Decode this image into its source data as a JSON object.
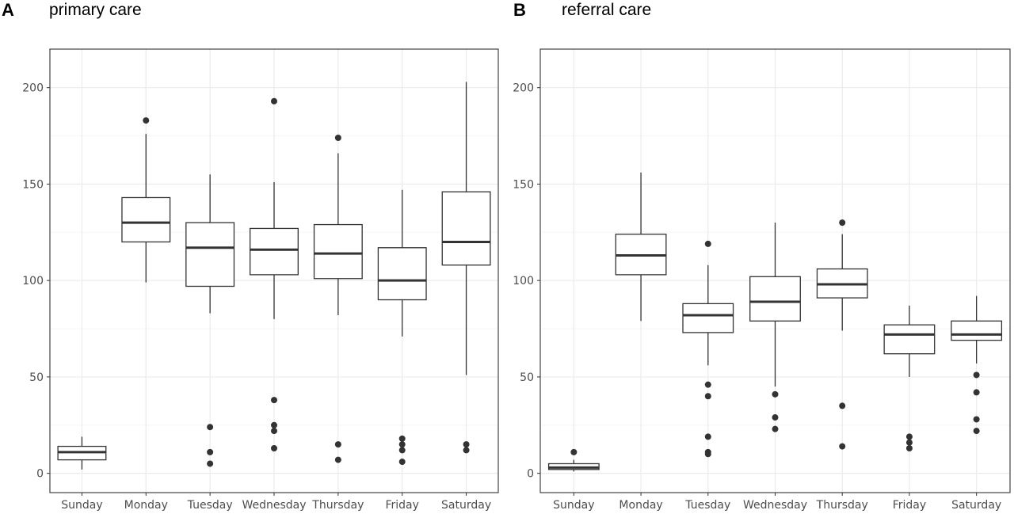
{
  "chart_data": [
    {
      "type": "box",
      "panel_label": "A",
      "title": "primary care",
      "xlabel": "",
      "ylabel": "",
      "ylim": [
        -10,
        220
      ],
      "yticks": [
        0,
        50,
        100,
        150,
        200
      ],
      "grid": true,
      "categories": [
        "Sunday",
        "Monday",
        "Tuesday",
        "Wednesday",
        "Thursday",
        "Friday",
        "Saturday"
      ],
      "boxes": [
        {
          "category": "Sunday",
          "whisker_low": 2,
          "q1": 7,
          "median": 11,
          "q3": 14,
          "whisker_high": 19,
          "outliers": []
        },
        {
          "category": "Monday",
          "whisker_low": 99,
          "q1": 120,
          "median": 130,
          "q3": 143,
          "whisker_high": 176,
          "outliers": [
            183
          ]
        },
        {
          "category": "Tuesday",
          "whisker_low": 83,
          "q1": 97,
          "median": 117,
          "q3": 130,
          "whisker_high": 155,
          "outliers": [
            24,
            11,
            5
          ]
        },
        {
          "category": "Wednesday",
          "whisker_low": 80,
          "q1": 103,
          "median": 116,
          "q3": 127,
          "whisker_high": 151,
          "outliers": [
            193,
            38,
            25,
            22,
            13
          ]
        },
        {
          "category": "Thursday",
          "whisker_low": 82,
          "q1": 101,
          "median": 114,
          "q3": 129,
          "whisker_high": 166,
          "outliers": [
            174,
            15,
            7
          ]
        },
        {
          "category": "Friday",
          "whisker_low": 71,
          "q1": 90,
          "median": 100,
          "q3": 117,
          "whisker_high": 147,
          "outliers": [
            18,
            15,
            12,
            6
          ]
        },
        {
          "category": "Saturday",
          "whisker_low": 51,
          "q1": 108,
          "median": 120,
          "q3": 146,
          "whisker_high": 203,
          "outliers": [
            15,
            12
          ]
        }
      ]
    },
    {
      "type": "box",
      "panel_label": "B",
      "title": "referral care",
      "xlabel": "",
      "ylabel": "",
      "ylim": [
        -10,
        220
      ],
      "yticks": [
        0,
        50,
        100,
        150,
        200
      ],
      "grid": true,
      "categories": [
        "Sunday",
        "Monday",
        "Tuesday",
        "Wednesday",
        "Thursday",
        "Friday",
        "Saturday"
      ],
      "boxes": [
        {
          "category": "Sunday",
          "whisker_low": 1,
          "q1": 2,
          "median": 3,
          "q3": 5,
          "whisker_high": 7,
          "outliers": [
            11
          ]
        },
        {
          "category": "Monday",
          "whisker_low": 79,
          "q1": 103,
          "median": 113,
          "q3": 124,
          "whisker_high": 156,
          "outliers": []
        },
        {
          "category": "Tuesday",
          "whisker_low": 56,
          "q1": 73,
          "median": 82,
          "q3": 88,
          "whisker_high": 108,
          "outliers": [
            119,
            46,
            40,
            19,
            11,
            10
          ]
        },
        {
          "category": "Wednesday",
          "whisker_low": 45,
          "q1": 79,
          "median": 89,
          "q3": 102,
          "whisker_high": 130,
          "outliers": [
            41,
            29,
            23
          ]
        },
        {
          "category": "Thursday",
          "whisker_low": 74,
          "q1": 91,
          "median": 98,
          "q3": 106,
          "whisker_high": 124,
          "outliers": [
            130,
            35,
            14
          ]
        },
        {
          "category": "Friday",
          "whisker_low": 50,
          "q1": 62,
          "median": 72,
          "q3": 77,
          "whisker_high": 87,
          "outliers": [
            19,
            16,
            13
          ]
        },
        {
          "category": "Saturday",
          "whisker_low": 57,
          "q1": 69,
          "median": 72,
          "q3": 79,
          "whisker_high": 92,
          "outliers": [
            51,
            42,
            28,
            22
          ]
        }
      ]
    }
  ],
  "colors": {
    "panel_background": "#ffffff",
    "panel_border": "#333333",
    "grid_major": "#ebebeb",
    "grid_minor": "#f5f5f5",
    "box_line": "#333333",
    "box_fill": "#ffffff",
    "tick_text": "#4d4d4d"
  }
}
